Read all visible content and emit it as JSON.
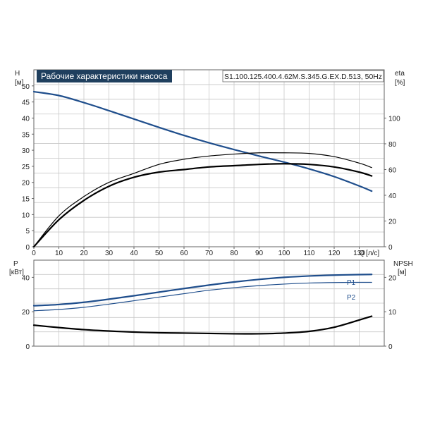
{
  "header": {
    "title": "Рабочие характеристики насоса",
    "model": "S1.100.125.400.4.62M.S.345.G.EX.D.513, 50Hz"
  },
  "colors": {
    "title_bg": "#1f3f5e",
    "blue": "#1f4e8c",
    "black": "#000000",
    "grid": "#c8c8c8",
    "frame": "#666666"
  },
  "chart_data": [
    {
      "type": "line",
      "axes": {
        "x": {
          "label": "Q",
          "unit": "[л/с]",
          "range": [
            0,
            140
          ],
          "ticks": [
            "0",
            "10",
            "20",
            "30",
            "40",
            "50",
            "60",
            "70",
            "80",
            "90",
            "100",
            "110",
            "120",
            "130"
          ],
          "tick_values": [
            0,
            10,
            20,
            30,
            40,
            50,
            60,
            70,
            80,
            90,
            100,
            110,
            120,
            130
          ]
        },
        "y_left": {
          "label": "H",
          "unit": "[м]",
          "range": [
            0,
            55
          ],
          "ticks": [
            "0",
            "5",
            "10",
            "15",
            "20",
            "25",
            "30",
            "35",
            "40",
            "45",
            "50"
          ],
          "tick_values": [
            0,
            5,
            10,
            15,
            20,
            25,
            30,
            35,
            40,
            45,
            50
          ]
        },
        "y_right": {
          "label": "eta",
          "unit": "[%]",
          "range": [
            0,
            137.5
          ],
          "ticks": [
            "0",
            "20",
            "40",
            "60",
            "80",
            "100"
          ],
          "tick_values": [
            0,
            20,
            40,
            60,
            80,
            100
          ]
        }
      },
      "grid": true,
      "series": [
        {
          "axis": "left",
          "color": "#1f4e8c",
          "width": 2.2,
          "x": [
            0,
            10,
            20,
            30,
            40,
            50,
            60,
            70,
            80,
            90,
            100,
            110,
            120,
            130,
            135
          ],
          "y": [
            48.2,
            47.0,
            44.8,
            42.3,
            39.7,
            37.1,
            34.6,
            32.3,
            30.2,
            28.2,
            26.3,
            24.2,
            21.8,
            18.9,
            17.3
          ]
        },
        {
          "axis": "right",
          "color": "#000000",
          "width": 1.2,
          "x": [
            0,
            10,
            20,
            30,
            40,
            50,
            60,
            70,
            80,
            90,
            100,
            110,
            120,
            130,
            135
          ],
          "y": [
            0,
            24,
            39,
            50,
            57,
            64,
            68,
            70.5,
            72,
            73,
            73,
            72.5,
            70,
            65,
            61.5
          ]
        },
        {
          "axis": "right",
          "color": "#000000",
          "width": 2.2,
          "x": [
            0,
            10,
            20,
            30,
            40,
            50,
            60,
            70,
            80,
            90,
            100,
            110,
            120,
            130,
            135
          ],
          "y": [
            0,
            21,
            36,
            47,
            54,
            58,
            60,
            62,
            63,
            64,
            64.5,
            64,
            62,
            58,
            55
          ]
        }
      ]
    },
    {
      "type": "line",
      "axes": {
        "x": {
          "range": [
            0,
            140
          ]
        },
        "y_left": {
          "label": "P",
          "unit": "[кВт]",
          "range": [
            0,
            50
          ],
          "ticks": [
            "0",
            "20",
            "40"
          ],
          "tick_values": [
            0,
            20,
            40
          ]
        },
        "y_right": {
          "label": "NPSH",
          "unit": "[м]",
          "range": [
            0,
            25
          ],
          "ticks": [
            "0",
            "10",
            "20"
          ],
          "tick_values": [
            0,
            10,
            20
          ]
        }
      },
      "grid": true,
      "series": [
        {
          "name": "P1",
          "axis": "left",
          "color": "#1f4e8c",
          "width": 2.2,
          "x": [
            0,
            10,
            20,
            30,
            40,
            50,
            60,
            70,
            80,
            90,
            100,
            110,
            120,
            130,
            135
          ],
          "y": [
            23.5,
            24.2,
            25.5,
            27.3,
            29.3,
            31.4,
            33.5,
            35.5,
            37.3,
            38.8,
            40.0,
            40.8,
            41.3,
            41.6,
            41.7
          ]
        },
        {
          "name": "P2",
          "axis": "left",
          "color": "#1f4e8c",
          "width": 1.2,
          "x": [
            0,
            10,
            20,
            30,
            40,
            50,
            60,
            70,
            80,
            90,
            100,
            110,
            120,
            130,
            135
          ],
          "y": [
            20.6,
            21.3,
            22.6,
            24.4,
            26.4,
            28.5,
            30.5,
            32.5,
            34.0,
            35.2,
            36.1,
            36.7,
            37.0,
            37.1,
            37.1
          ]
        },
        {
          "axis": "right",
          "color": "#000000",
          "width": 2.2,
          "x": [
            0,
            10,
            20,
            30,
            40,
            50,
            60,
            70,
            80,
            90,
            100,
            110,
            120,
            130,
            135
          ],
          "y": [
            6.1,
            5.4,
            4.8,
            4.4,
            4.1,
            3.9,
            3.8,
            3.7,
            3.6,
            3.6,
            3.8,
            4.3,
            5.5,
            7.6,
            8.7
          ]
        }
      ]
    }
  ]
}
